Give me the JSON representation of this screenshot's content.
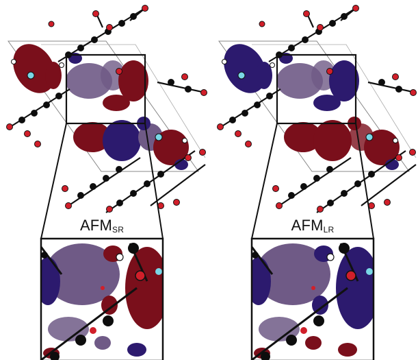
{
  "panels": [
    {
      "id": "left",
      "label_main": "AFM",
      "label_sub": "SR"
    },
    {
      "id": "right",
      "label_main": "AFM",
      "label_sub": "LR"
    }
  ],
  "colors": {
    "lobe_red": "#7a0f1b",
    "lobe_blue": "#2c1a6e",
    "lobe_purple": "#6f5a86",
    "atom_black": "#0d0d0d",
    "atom_red": "#d11f2a",
    "atom_white": "#ffffff",
    "atom_cyan": "#7ad7e6",
    "cell_edge": "#7a7a7a",
    "frame": "#111111"
  }
}
